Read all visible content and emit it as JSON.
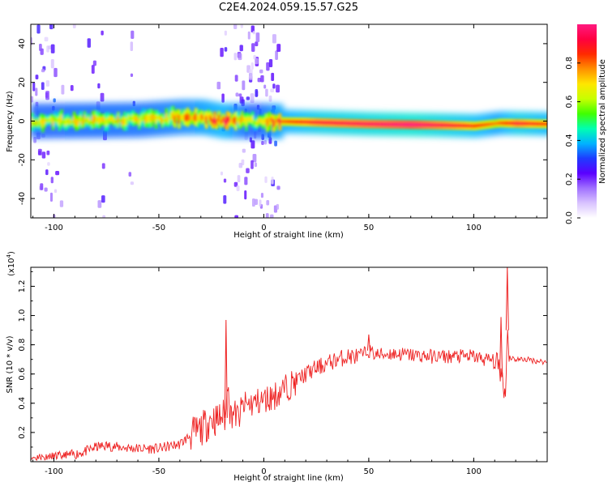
{
  "title": "C2E4.2024.059.15.57.G25",
  "chart_data": [
    {
      "type": "heatmap",
      "xlabel": "Height of straight line (km)",
      "ylabel": "Frequency (Hz)",
      "xlim": [
        -111,
        135
      ],
      "ylim": [
        -50,
        50
      ],
      "xticks": [
        -100,
        -50,
        0,
        50,
        100
      ],
      "yticks": [
        -40,
        -20,
        0,
        20,
        40
      ],
      "colorbar": {
        "label": "Normalized spectral amplitude",
        "range": [
          0.0,
          1.0
        ],
        "ticks": [
          "0.0",
          "0.2",
          "0.4",
          "0.6",
          "0.8"
        ],
        "stops": [
          "#ffffff",
          "#d9c3ff",
          "#a070ff",
          "#5a00ff",
          "#1e3cff",
          "#00b4ff",
          "#00ffb0",
          "#40ff00",
          "#c8ff00",
          "#ffe600",
          "#ff9000",
          "#ff2a00",
          "#ff0040",
          "#ff1a80"
        ]
      },
      "ridge_centers": [
        [
          -110,
          0.0
        ],
        [
          -80,
          0.3
        ],
        [
          -60,
          0.6
        ],
        [
          -40,
          2.0
        ],
        [
          -30,
          2.0
        ],
        [
          -20,
          0.0
        ],
        [
          0,
          0.0
        ],
        [
          20,
          -0.5
        ],
        [
          50,
          -1.5
        ],
        [
          80,
          -2.0
        ],
        [
          100,
          -2.5
        ],
        [
          112,
          -1.0
        ],
        [
          135,
          -1.5
        ]
      ],
      "ridge_intensity": [
        [
          -110,
          0.35
        ],
        [
          -60,
          0.4
        ],
        [
          -40,
          0.5
        ],
        [
          -20,
          0.7
        ],
        [
          -10,
          0.4
        ],
        [
          -5,
          0.3
        ],
        [
          5,
          0.6
        ],
        [
          25,
          0.85
        ],
        [
          70,
          1.0
        ],
        [
          95,
          0.8
        ],
        [
          110,
          0.6
        ],
        [
          120,
          0.85
        ],
        [
          135,
          0.7
        ]
      ]
    },
    {
      "type": "line",
      "xlabel": "Height of straight line (km)",
      "ylabel": "SNR (10 * v/v)",
      "scale_note_base": "(x10",
      "scale_note_exp": "4",
      "scale_note_end": ")",
      "xlim": [
        -111,
        135
      ],
      "ylim": [
        0.0,
        1.33
      ],
      "xticks": [
        -100,
        -50,
        0,
        50,
        100
      ],
      "yticks": [
        "0.2",
        "0.4",
        "0.6",
        "0.8",
        "1.0",
        "1.2"
      ],
      "series": [
        {
          "color": "#ee2222",
          "x": [
            -111,
            -100,
            -90,
            -85,
            -80,
            -75,
            -70,
            -60,
            -50,
            -40,
            -35,
            -30,
            -27,
            -25,
            -22,
            -20,
            -18,
            -17,
            -16,
            -15,
            -12,
            -10,
            -5,
            0,
            5,
            10,
            15,
            20,
            25,
            30,
            35,
            40,
            45,
            48,
            50,
            52,
            55,
            60,
            70,
            80,
            90,
            100,
            105,
            108,
            110,
            112,
            114,
            115,
            116,
            117,
            118,
            120,
            125,
            130,
            135
          ],
          "y": [
            0.03,
            0.03,
            0.05,
            0.07,
            0.1,
            0.11,
            0.1,
            0.09,
            0.09,
            0.12,
            0.18,
            0.22,
            0.26,
            0.3,
            0.28,
            0.32,
            0.3,
            0.65,
            0.3,
            0.35,
            0.3,
            0.38,
            0.4,
            0.42,
            0.45,
            0.5,
            0.55,
            0.6,
            0.64,
            0.67,
            0.7,
            0.72,
            0.72,
            0.74,
            0.76,
            0.74,
            0.73,
            0.74,
            0.73,
            0.72,
            0.72,
            0.72,
            0.7,
            0.7,
            0.68,
            0.66,
            0.55,
            0.44,
            0.9,
            0.72,
            0.71,
            0.7,
            0.7,
            0.69,
            0.68
          ]
        }
      ],
      "spikes": [
        {
          "x": -18,
          "y": 0.97
        },
        {
          "x": 50,
          "y": 0.87
        },
        {
          "x": 113,
          "y": 0.99
        },
        {
          "x": 116,
          "y": 1.33
        }
      ]
    }
  ]
}
